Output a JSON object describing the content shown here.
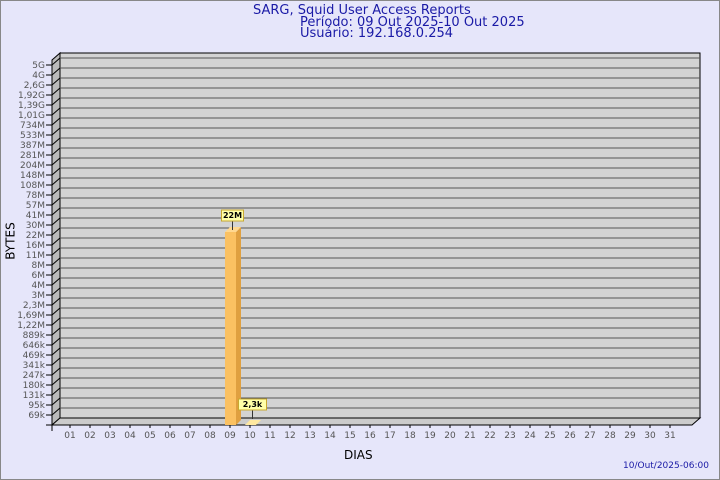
{
  "title": "SARG, Squid User Access Reports",
  "period": "Período: 09 Out 2025-10 Out 2025",
  "user": "Usuário: 192.168.0.254",
  "footer": "10/Out/2025-06:00",
  "chart_data": {
    "type": "bar",
    "xlabel": "DIAS",
    "ylabel": "BYTES",
    "y_scale": "log",
    "y_ticks": [
      "5G",
      "4G",
      "2,6G",
      "1,92G",
      "1,39G",
      "1,01G",
      "734M",
      "533M",
      "387M",
      "281M",
      "204M",
      "148M",
      "108M",
      "78M",
      "57M",
      "41M",
      "30M",
      "22M",
      "16M",
      "11M",
      "8M",
      "6M",
      "4M",
      "3M",
      "2,3M",
      "1,69M",
      "1,22M",
      "889k",
      "646k",
      "469k",
      "341k",
      "247k",
      "180k",
      "131k",
      "95k",
      "69k"
    ],
    "categories": [
      "01",
      "02",
      "03",
      "04",
      "05",
      "06",
      "07",
      "08",
      "09",
      "10",
      "11",
      "12",
      "13",
      "14",
      "15",
      "16",
      "17",
      "18",
      "19",
      "20",
      "21",
      "22",
      "23",
      "24",
      "25",
      "26",
      "27",
      "28",
      "29",
      "30",
      "31"
    ],
    "bars": [
      {
        "day": "09",
        "value": 22000000,
        "label": "22M"
      },
      {
        "day": "10",
        "value": 2300,
        "label": "2,3k"
      }
    ],
    "colors": {
      "bar": "#fbc162",
      "bar_side": "#e0a040",
      "plot": "#d3d3d3",
      "label_bg": "#ffffa8"
    }
  }
}
